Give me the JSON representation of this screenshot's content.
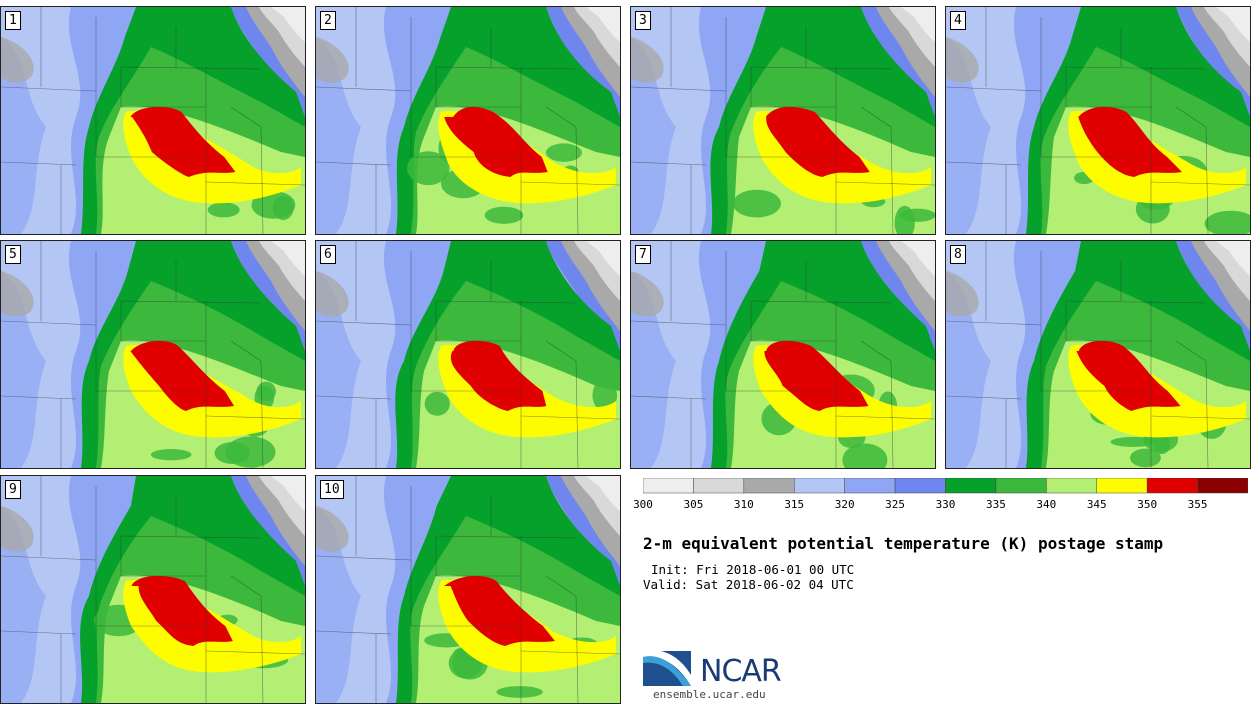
{
  "panels": [
    {
      "label": "1"
    },
    {
      "label": "2"
    },
    {
      "label": "3"
    },
    {
      "label": "4"
    },
    {
      "label": "5"
    },
    {
      "label": "6"
    },
    {
      "label": "7"
    },
    {
      "label": "8"
    },
    {
      "label": "9"
    },
    {
      "label": "10"
    }
  ],
  "colorbar": {
    "bins": [
      {
        "lo": 300,
        "color": "#eeeeee"
      },
      {
        "lo": 305,
        "color": "#d9d9d9"
      },
      {
        "lo": 310,
        "color": "#a9a9a9"
      },
      {
        "lo": 315,
        "color": "#b4c6f4"
      },
      {
        "lo": 320,
        "color": "#8fa6f5"
      },
      {
        "lo": 325,
        "color": "#6f86ee"
      },
      {
        "lo": 330,
        "color": "#05a12a"
      },
      {
        "lo": 335,
        "color": "#3cb93c"
      },
      {
        "lo": 340,
        "color": "#b2ef73"
      },
      {
        "lo": 345,
        "color": "#fdfd00"
      },
      {
        "lo": 350,
        "color": "#e00000"
      },
      {
        "lo": 355,
        "color": "#8b0000"
      }
    ],
    "ticks": [
      "300",
      "305",
      "310",
      "315",
      "320",
      "325",
      "330",
      "335",
      "340",
      "345",
      "350",
      "355"
    ]
  },
  "title": "2-m equivalent potential temperature (K) postage stamp",
  "init_line": "Init: Fri 2018-06-01 00 UTC",
  "valid_line": "Valid: Sat 2018-06-02 04 UTC",
  "logo": {
    "name": "NCAR",
    "url": "ensemble.ucar.edu"
  }
}
